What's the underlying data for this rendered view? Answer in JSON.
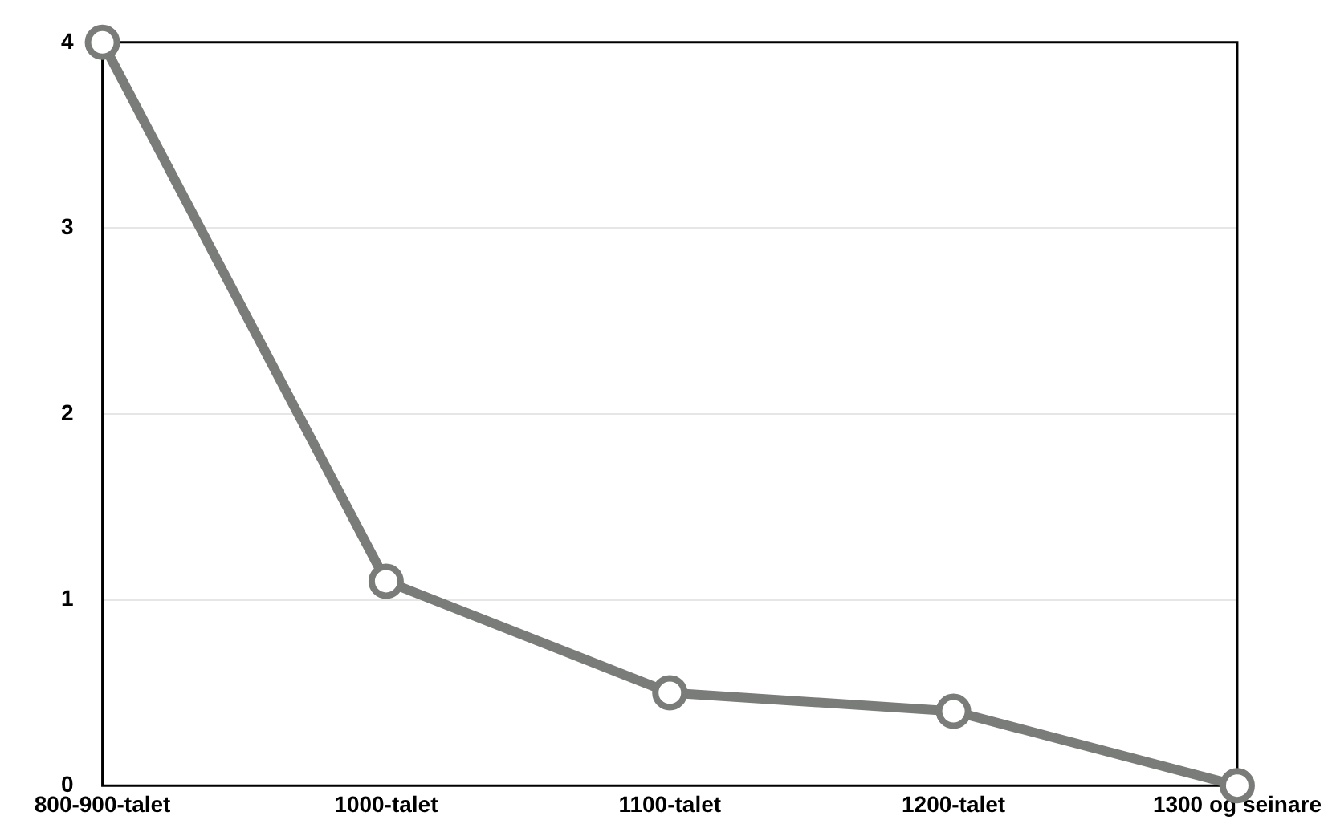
{
  "chart_data": {
    "type": "line",
    "categories": [
      "800-900-talet",
      "1000-talet",
      "1100-talet",
      "1200-talet",
      "1300 og seinare"
    ],
    "series": [
      {
        "color": "#7a7c79",
        "values": [
          4,
          1.1,
          0.5,
          0.4,
          0
        ]
      }
    ],
    "ylim": [
      0,
      4
    ],
    "yticks": [
      0,
      1,
      2,
      3,
      4
    ],
    "grid": "y",
    "legend": false,
    "marker": "circle",
    "line_style": "solid"
  }
}
